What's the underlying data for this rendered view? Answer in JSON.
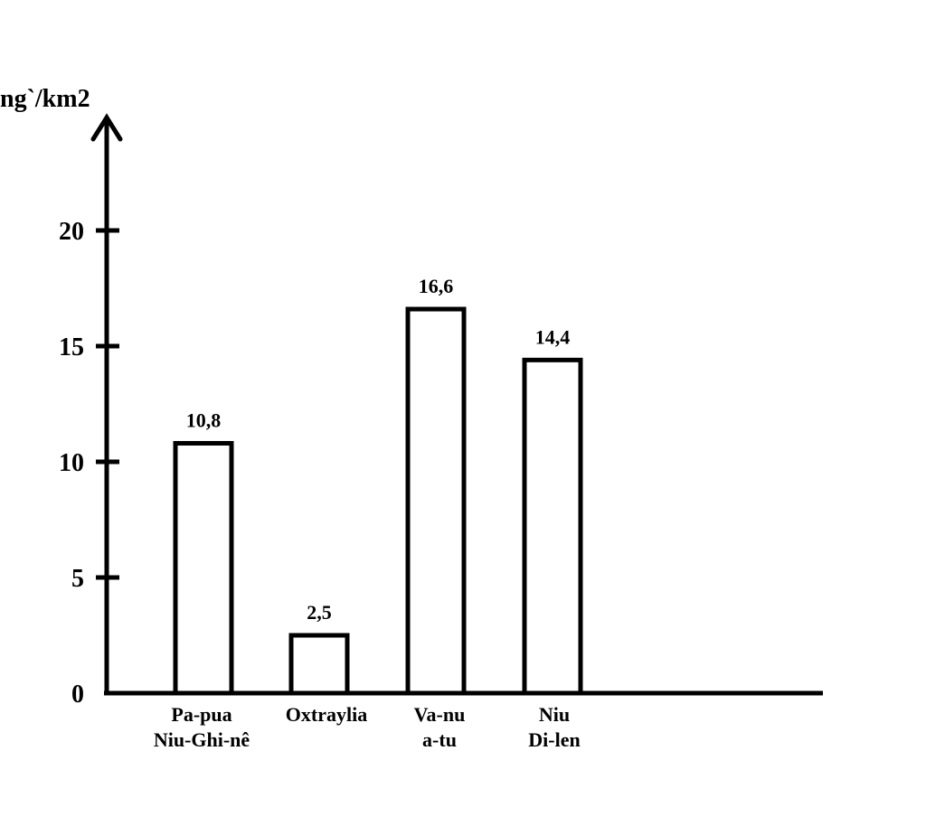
{
  "chart_data": {
    "type": "bar",
    "ylabel": "ng`/km2",
    "xlabel": "",
    "title": "",
    "ylim": [
      0,
      25
    ],
    "yticks": [
      0,
      5,
      10,
      15,
      20
    ],
    "ytick_labels": [
      "0",
      "5",
      "10",
      "15",
      "20"
    ],
    "categories": [
      [
        "Pa-pua",
        "Niu-Ghi-nê"
      ],
      [
        "Oxtraylia"
      ],
      [
        "Va-nu",
        "a-tu"
      ],
      [
        "Niu",
        "Di-len"
      ]
    ],
    "values": [
      10.8,
      2.5,
      16.6,
      14.4
    ],
    "value_labels": [
      "10,8",
      "2,5",
      "16,6",
      "14,4"
    ],
    "grid": false,
    "legend": "none",
    "colors": {
      "bar_fill": "#ffffff",
      "bar_stroke": "#000000",
      "axis": "#000000"
    }
  }
}
